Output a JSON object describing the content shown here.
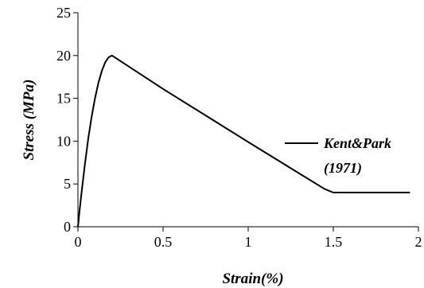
{
  "chart_data": {
    "type": "line",
    "xlabel": "Strain(%)",
    "ylabel": "Stress (MPa)",
    "xlim": [
      0,
      2
    ],
    "ylim": [
      0,
      25
    ],
    "x_ticks": [
      "0",
      "0.5",
      "1",
      "1.5",
      "2"
    ],
    "y_ticks": [
      "0",
      "5",
      "10",
      "15",
      "20",
      "25"
    ],
    "grid": false,
    "legend": {
      "position": "right",
      "lines": [
        "Kent&Park",
        "(1971)"
      ]
    },
    "series": [
      {
        "name": "Kent&Park (1971)",
        "color": "#000000",
        "x": [
          0,
          0.01,
          0.02,
          0.04,
          0.06,
          0.08,
          0.1,
          0.12,
          0.14,
          0.16,
          0.18,
          0.2,
          0.5,
          1.0,
          1.45,
          1.5,
          1.6,
          1.8,
          1.95
        ],
        "y": [
          0,
          1.95,
          3.8,
          7.2,
          10.2,
          12.8,
          15.0,
          16.8,
          18.2,
          19.2,
          19.8,
          20.0,
          16.1,
          9.9,
          4.4,
          4.0,
          4.0,
          4.0,
          4.0
        ]
      }
    ]
  }
}
